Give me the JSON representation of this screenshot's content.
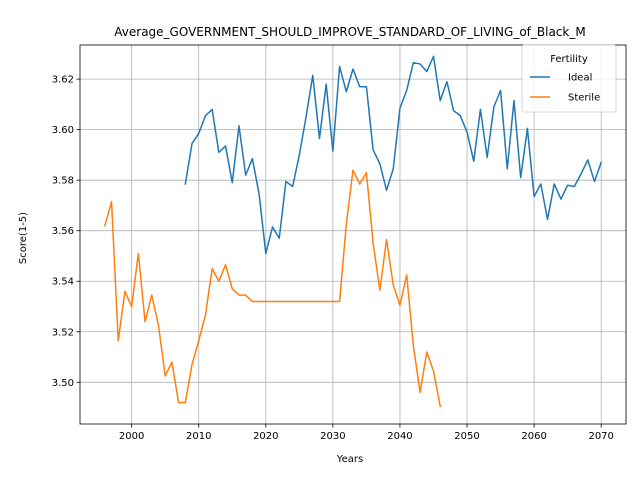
{
  "chart_data": {
    "type": "line",
    "title": "Average_GOVERNMENT_SHOULD_IMPROVE_STANDARD_OF_LIVING_of_Black_M",
    "xlabel": "Years",
    "ylabel": "Score(1-5)",
    "xlim": [
      1992.3,
      2073.7
    ],
    "ylim": [
      3.4835,
      3.6335
    ],
    "xticks": [
      2000,
      2010,
      2020,
      2030,
      2040,
      2050,
      2060,
      2070
    ],
    "yticks": [
      3.5,
      3.52,
      3.54,
      3.56,
      3.58,
      3.6,
      3.62
    ],
    "grid": true,
    "legend": {
      "title": "Fertility",
      "placement": "top-right"
    },
    "series": [
      {
        "name": "Ideal",
        "color": "#1f77b4",
        "x": [
          2008,
          2009,
          2010,
          2011,
          2012,
          2013,
          2014,
          2015,
          2016,
          2017,
          2018,
          2019,
          2020,
          2021,
          2022,
          2023,
          2024,
          2025,
          2026,
          2027,
          2028,
          2029,
          2030,
          2031,
          2032,
          2033,
          2034,
          2035,
          2036,
          2037,
          2038,
          2039,
          2040,
          2041,
          2042,
          2043,
          2044,
          2045,
          2046,
          2047,
          2048,
          2049,
          2050,
          2051,
          2052,
          2053,
          2054,
          2055,
          2056,
          2057,
          2058,
          2059,
          2060,
          2061,
          2062,
          2063,
          2064,
          2065,
          2066,
          2067,
          2068,
          2069,
          2070
        ],
        "y": [
          3.5785,
          3.5945,
          3.5985,
          3.6055,
          3.608,
          3.591,
          3.5935,
          3.579,
          3.6015,
          3.582,
          3.5885,
          3.5745,
          3.551,
          3.5615,
          3.557,
          3.5795,
          3.5775,
          3.59,
          3.605,
          3.6215,
          3.5965,
          3.618,
          3.5915,
          3.625,
          3.615,
          3.624,
          3.617,
          3.617,
          3.592,
          3.5865,
          3.576,
          3.5845,
          3.6085,
          3.6155,
          3.6265,
          3.626,
          3.623,
          3.629,
          3.6115,
          3.619,
          3.6075,
          3.6055,
          3.599,
          3.5875,
          3.608,
          3.589,
          3.609,
          3.6155,
          3.5845,
          3.6115,
          3.581,
          3.6005,
          3.5735,
          3.5785,
          3.5645,
          3.5785,
          3.5725,
          3.578,
          3.5775,
          3.5825,
          3.588,
          3.5795,
          3.587
        ]
      },
      {
        "name": "Sterile",
        "color": "#ff7f0e",
        "x": [
          1996,
          1997,
          1998,
          1999,
          2000,
          2001,
          2002,
          2003,
          2004,
          2005,
          2006,
          2007,
          2008,
          2009,
          2010,
          2011,
          2012,
          2013,
          2014,
          2015,
          2016,
          2017,
          2018,
          2019,
          2020,
          2021,
          2022,
          2023,
          2024,
          2025,
          2026,
          2027,
          2028,
          2029,
          2030,
          2031,
          2032,
          2033,
          2034,
          2035,
          2036,
          2037,
          2038,
          2039,
          2040,
          2041,
          2042,
          2043,
          2044,
          2045,
          2046
        ],
        "y": [
          3.562,
          3.5715,
          3.5165,
          3.536,
          3.53,
          3.551,
          3.524,
          3.5345,
          3.5225,
          3.5025,
          3.508,
          3.492,
          3.492,
          3.507,
          3.5165,
          3.5265,
          3.545,
          3.54,
          3.5465,
          3.537,
          3.5345,
          3.5345,
          3.532,
          3.532,
          3.532,
          3.532,
          3.532,
          3.532,
          3.532,
          3.532,
          3.532,
          3.532,
          3.532,
          3.532,
          3.532,
          3.532,
          3.5625,
          3.584,
          3.5785,
          3.583,
          3.555,
          3.5365,
          3.5565,
          3.5385,
          3.5305,
          3.5425,
          3.5145,
          3.496,
          3.512,
          3.5045,
          3.4905
        ]
      }
    ]
  }
}
